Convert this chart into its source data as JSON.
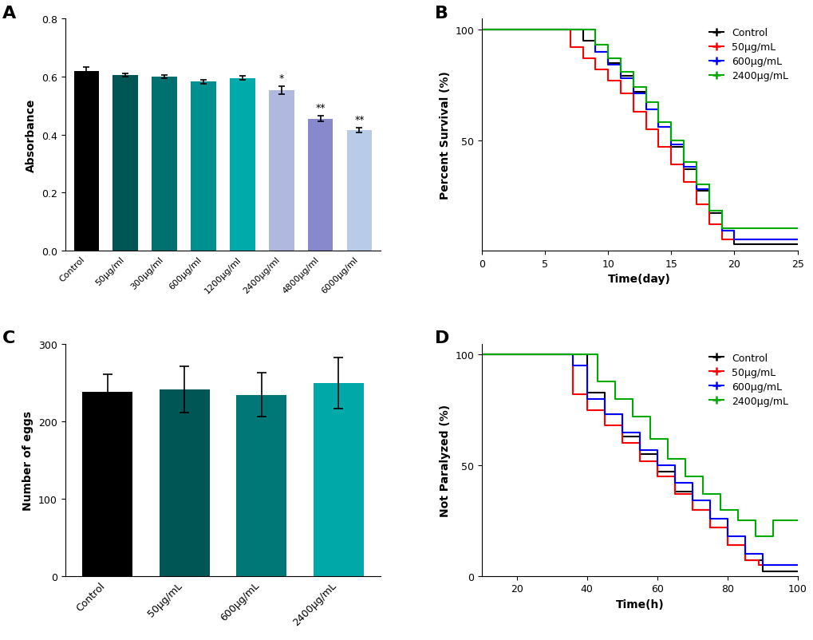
{
  "panel_A": {
    "categories": [
      "Control",
      "50μg/ml",
      "300μg/ml",
      "600μg/ml",
      "1200μg/ml",
      "2400μg/ml",
      "4800μg/ml",
      "6000μg/ml"
    ],
    "values": [
      0.62,
      0.605,
      0.6,
      0.582,
      0.595,
      0.553,
      0.455,
      0.415
    ],
    "errors": [
      0.012,
      0.005,
      0.005,
      0.008,
      0.007,
      0.013,
      0.01,
      0.008
    ],
    "colors": [
      "#000000",
      "#005555",
      "#007070",
      "#009090",
      "#00aaaa",
      "#b0b8e0",
      "#8888cc",
      "#b8cce8"
    ],
    "sig": [
      "",
      "",
      "",
      "",
      "",
      "*",
      "**",
      "**"
    ],
    "ylabel": "Absorbance",
    "ylim": [
      0,
      0.8
    ],
    "yticks": [
      0.0,
      0.2,
      0.4,
      0.6,
      0.8
    ]
  },
  "panel_B": {
    "groups": [
      "Control",
      "50μg/mL",
      "600μg/mL",
      "2400μg/mL"
    ],
    "colors": [
      "#000000",
      "#ff0000",
      "#0000ff",
      "#00aa00"
    ],
    "series": [
      {
        "t": [
          0,
          7,
          8,
          9,
          10,
          11,
          12,
          13,
          14,
          15,
          16,
          17,
          18,
          19,
          20,
          25
        ],
        "s": [
          100,
          100,
          95,
          90,
          85,
          79,
          72,
          64,
          56,
          47,
          37,
          27,
          17,
          9,
          3,
          3
        ]
      },
      {
        "t": [
          0,
          7,
          8,
          9,
          10,
          11,
          12,
          13,
          14,
          15,
          16,
          17,
          18,
          19,
          20,
          21,
          25
        ],
        "s": [
          100,
          92,
          87,
          82,
          77,
          71,
          63,
          55,
          47,
          39,
          31,
          21,
          12,
          5,
          5,
          5,
          5
        ]
      },
      {
        "t": [
          0,
          8,
          9,
          10,
          11,
          12,
          13,
          14,
          15,
          16,
          17,
          18,
          19,
          20,
          25
        ],
        "s": [
          100,
          100,
          90,
          84,
          78,
          71,
          64,
          56,
          48,
          38,
          28,
          18,
          9,
          5,
          5
        ]
      },
      {
        "t": [
          0,
          8,
          9,
          10,
          11,
          12,
          13,
          14,
          15,
          16,
          17,
          18,
          19,
          25
        ],
        "s": [
          100,
          100,
          93,
          87,
          81,
          74,
          67,
          58,
          50,
          40,
          30,
          18,
          10,
          10
        ]
      }
    ],
    "xlabel": "Time(day)",
    "ylabel": "Percent Survival (%)",
    "xlim": [
      0,
      25
    ],
    "ylim": [
      0,
      105
    ],
    "xticks": [
      0,
      5,
      10,
      15,
      20,
      25
    ],
    "yticks": [
      50,
      100
    ]
  },
  "panel_C": {
    "categories": [
      "Control",
      "50μg/mL",
      "600μg/mL",
      "2400μg/mL"
    ],
    "values": [
      238,
      241,
      234,
      249
    ],
    "errors": [
      22,
      30,
      28,
      33
    ],
    "colors": [
      "#000000",
      "#005555",
      "#007878",
      "#00a8a8"
    ],
    "ylabel": "Number of eggs",
    "ylim": [
      0,
      300
    ],
    "yticks": [
      0,
      100,
      200,
      300
    ]
  },
  "panel_D": {
    "groups": [
      "Control",
      "50μg/mL",
      "600μg/mL",
      "2400μg/mL"
    ],
    "colors": [
      "#000000",
      "#ff0000",
      "#0000ff",
      "#00aa00"
    ],
    "series": [
      {
        "t": [
          0,
          36,
          40,
          45,
          50,
          55,
          60,
          65,
          70,
          75,
          80,
          85,
          90,
          100
        ],
        "s": [
          100,
          100,
          83,
          73,
          63,
          55,
          47,
          38,
          30,
          22,
          14,
          7,
          2,
          2
        ]
      },
      {
        "t": [
          0,
          36,
          40,
          45,
          50,
          55,
          60,
          65,
          70,
          75,
          80,
          85,
          89,
          100
        ],
        "s": [
          100,
          82,
          75,
          68,
          60,
          52,
          45,
          37,
          30,
          22,
          14,
          7,
          5,
          5
        ]
      },
      {
        "t": [
          0,
          36,
          40,
          45,
          50,
          55,
          60,
          65,
          70,
          75,
          80,
          85,
          90,
          100
        ],
        "s": [
          100,
          95,
          80,
          73,
          65,
          57,
          50,
          42,
          34,
          26,
          18,
          10,
          5,
          5
        ]
      },
      {
        "t": [
          0,
          38,
          43,
          48,
          53,
          58,
          63,
          68,
          73,
          78,
          83,
          88,
          93,
          100
        ],
        "s": [
          100,
          100,
          88,
          80,
          72,
          62,
          53,
          45,
          37,
          30,
          25,
          18,
          25,
          25
        ]
      }
    ],
    "xlabel": "Time(h)",
    "ylabel": "Not Paralyzed (%)",
    "xlim": [
      10,
      100
    ],
    "ylim": [
      0,
      105
    ],
    "xticks": [
      20,
      40,
      60,
      80,
      100
    ],
    "yticks": [
      0,
      50,
      100
    ]
  },
  "background_color": "#ffffff",
  "legend_labels": [
    "Control",
    "50μg/mL",
    "600μg/mL",
    "2400μg/mL"
  ]
}
